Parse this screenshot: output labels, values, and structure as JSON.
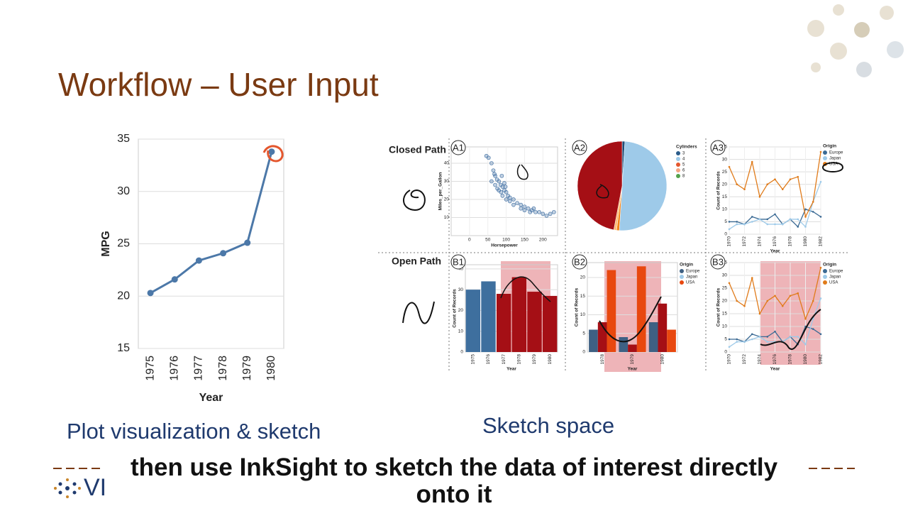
{
  "slide": {
    "title": "Workflow – User Input",
    "left_caption": "Plot visualization & sketch",
    "right_caption": "Sketch space",
    "subtitle": "then use InkSight to sketch the data of interest directly onto it",
    "logo_text": "VI",
    "row_labels": [
      "Closed Path",
      "Open Path"
    ]
  },
  "chart_data": [
    {
      "type": "line",
      "categories": [
        "1975",
        "1976",
        "1977",
        "1978",
        "1979",
        "1980"
      ],
      "values": [
        20.3,
        21.6,
        23.4,
        24.1,
        25.1,
        33.8
      ],
      "ylim": [
        15,
        35
      ],
      "yticks": [
        15,
        20,
        25,
        30,
        35
      ],
      "xlabel": "Year",
      "ylabel": "MPG",
      "color": "#4c78a8",
      "grid": true
    },
    {
      "type": "scatter",
      "label": "A1",
      "x": [
        46,
        52,
        60,
        65,
        70,
        75,
        80,
        85,
        90,
        95,
        100,
        105,
        110,
        120,
        130,
        140,
        150,
        160,
        170,
        180,
        190,
        200,
        210,
        220,
        230,
        60,
        70,
        80,
        90,
        100,
        110,
        120,
        88,
        76,
        95,
        150,
        140,
        165,
        175,
        68,
        86,
        98
      ],
      "y": [
        44,
        43,
        40,
        36,
        33,
        31,
        30,
        28,
        27,
        25,
        24,
        22,
        21,
        20,
        18,
        17,
        16,
        15,
        14,
        13,
        13,
        12,
        11,
        12,
        13,
        30,
        28,
        25,
        22,
        20,
        19,
        17,
        33,
        26,
        29,
        14,
        15,
        13,
        15,
        34,
        24,
        27
      ],
      "xlim": [
        -50,
        240
      ],
      "ylim": [
        0,
        49
      ],
      "xticks": [
        0,
        50,
        100,
        150,
        200
      ],
      "yticks": [
        10,
        20,
        30,
        40
      ],
      "xlabel": "Horsepower",
      "ylabel": "Miles_per_Gallon",
      "color": "#4c78a8",
      "grid": true
    },
    {
      "type": "pie",
      "label": "A2",
      "legend_title": "Cylinders",
      "categories": [
        "3",
        "4",
        "5",
        "6",
        "8"
      ],
      "values": [
        1,
        50,
        1,
        1,
        47
      ],
      "colors": [
        "#1f4e79",
        "#9ecae9",
        "#f58518",
        "#ffbf79",
        "#a50f15"
      ],
      "legend_colors": [
        "#2b5c8a",
        "#9ecae9",
        "#e4572e",
        "#f4a582",
        "#54a24b"
      ]
    },
    {
      "type": "line",
      "label": "A3",
      "x": [
        1970,
        1971,
        1972,
        1973,
        1974,
        1975,
        1976,
        1977,
        1978,
        1979,
        1980,
        1981,
        1982
      ],
      "xlim": [
        1970,
        1982
      ],
      "xticks": [
        1970,
        1972,
        1974,
        1976,
        1978,
        1980,
        1982
      ],
      "ylim": [
        0,
        35
      ],
      "yticks": [
        0,
        5,
        10,
        15,
        20,
        25,
        30,
        35
      ],
      "xlabel": "Year",
      "ylabel": "Count of Records",
      "legend_title": "Origin",
      "grid": true,
      "series": [
        {
          "name": "Europe",
          "color": "#3b6a94",
          "values": [
            5,
            5,
            4,
            7,
            6,
            6,
            8,
            4,
            6,
            3,
            10,
            9,
            7
          ]
        },
        {
          "name": "Japan",
          "color": "#9ecae9",
          "values": [
            2,
            4,
            4,
            5,
            6,
            4,
            4,
            4,
            6,
            6,
            3,
            13,
            21
          ]
        },
        {
          "name": "USA",
          "color": "#e07b1a",
          "values": [
            27,
            20,
            18,
            29,
            15,
            20,
            22,
            18,
            22,
            23,
            7,
            13,
            33
          ]
        }
      ]
    },
    {
      "type": "bar",
      "label": "B1",
      "categories": [
        "1975",
        "1976",
        "1977",
        "1978",
        "1979",
        "1980"
      ],
      "values": [
        30,
        34,
        28,
        36,
        29,
        27
      ],
      "colors": [
        "#3e6f9e",
        "#3e6f9e",
        "#a50f15",
        "#a50f15",
        "#a50f15",
        "#a50f15"
      ],
      "ylim": [
        0,
        42
      ],
      "yticks": [
        0,
        10,
        20,
        30,
        40
      ],
      "xlabel": "Year",
      "ylabel": "Count of Records",
      "grid": true
    },
    {
      "type": "grouped_bar",
      "label": "B2",
      "categories": [
        "1978",
        "1979",
        "1980"
      ],
      "ylim": [
        0,
        24
      ],
      "yticks": [
        0,
        5,
        10,
        15,
        20
      ],
      "xlabel": "Year",
      "ylabel": "Count of Records",
      "legend_title": "Origin",
      "grid": true,
      "series": [
        {
          "name": "Europe",
          "color": "#3e6083",
          "legend_color": "#3e6083",
          "values": [
            6,
            4,
            8
          ]
        },
        {
          "name": "Japan",
          "color": "#a50f15",
          "legend_color": "#9ecae9",
          "values": [
            8,
            2,
            13
          ]
        },
        {
          "name": "USA",
          "color": "#e8480f",
          "legend_color": "#e8480f",
          "values": [
            22,
            23,
            6
          ]
        }
      ]
    },
    {
      "type": "line",
      "label": "B3",
      "x": [
        1970,
        1971,
        1972,
        1973,
        1974,
        1975,
        1976,
        1977,
        1978,
        1979,
        1980,
        1981,
        1982
      ],
      "xlim": [
        1970,
        1982
      ],
      "xticks": [
        1970,
        1972,
        1974,
        1976,
        1978,
        1980,
        1982
      ],
      "ylim": [
        0,
        35
      ],
      "yticks": [
        0,
        5,
        10,
        15,
        20,
        25,
        30,
        35
      ],
      "xlabel": "Year",
      "ylabel": "Count of Records",
      "legend_title": "Origin",
      "grid": true,
      "series": [
        {
          "name": "Europe",
          "color": "#3b6a94",
          "values": [
            5,
            5,
            4,
            7,
            6,
            6,
            8,
            4,
            6,
            3,
            10,
            9,
            7
          ]
        },
        {
          "name": "Japan",
          "color": "#9ecae9",
          "values": [
            2,
            4,
            4,
            5,
            6,
            4,
            4,
            4,
            6,
            6,
            3,
            13,
            21
          ]
        },
        {
          "name": "USA",
          "color": "#e07b1a",
          "values": [
            27,
            20,
            18,
            29,
            15,
            20,
            22,
            18,
            22,
            23,
            13,
            20,
            33
          ]
        }
      ]
    }
  ]
}
